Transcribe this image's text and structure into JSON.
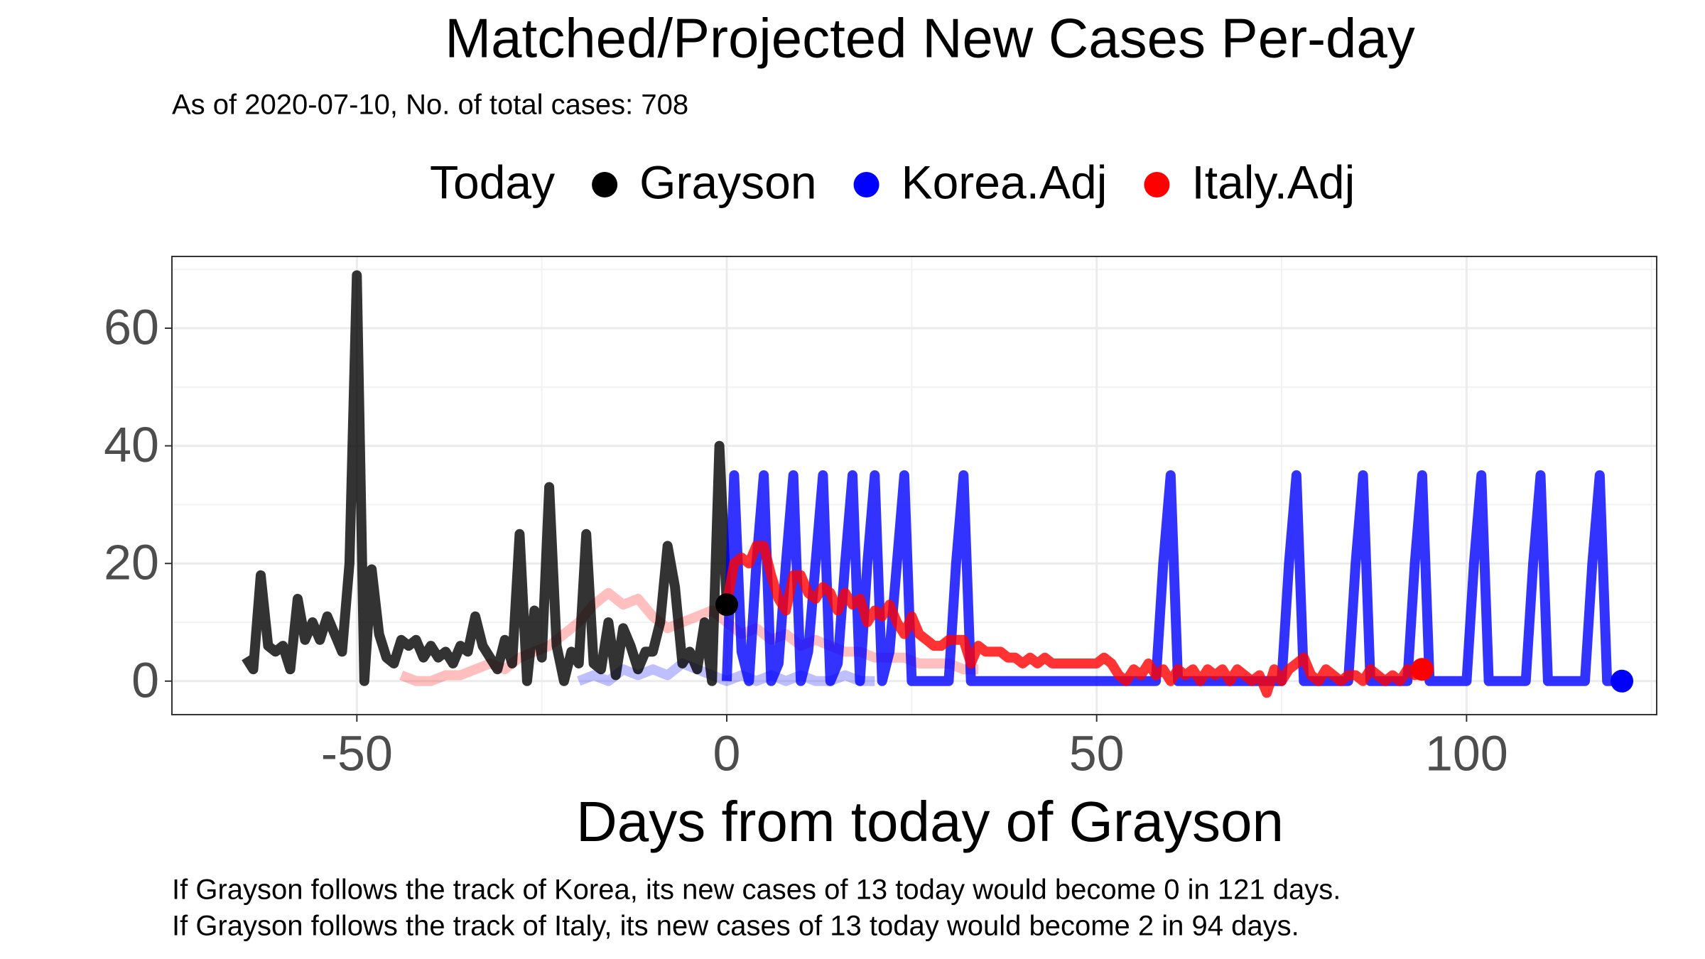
{
  "chart_data": {
    "type": "line",
    "title": "Matched/Projected New Cases Per-day",
    "subtitle": "As of 2020-07-10, No. of total cases: 708",
    "x_label": "Days from today of Grayson",
    "legend_title": "Today",
    "legend_position": "top",
    "caption": [
      "If Grayson follows the track of Korea, its new cases of 13 today would become 0 in 121 days.",
      "If Grayson follows the track of Italy, its new cases of 13 today would become 2 in 94 days."
    ],
    "xlim": [
      -75,
      125.7
    ],
    "ylim": [
      -5.7,
      72.2
    ],
    "xticks": [
      -50,
      0,
      50,
      100
    ],
    "yticks": [
      0,
      20,
      40,
      60
    ],
    "minor_xticks": [
      -75,
      -25,
      25,
      75,
      125
    ],
    "minor_yticks": [
      10,
      30,
      50,
      70
    ],
    "grid": true,
    "line_opacity": 0.8,
    "matched_opacity": 0.25,
    "series": [
      {
        "name": "Grayson",
        "color": "#000000",
        "x": [
          -65,
          -64,
          -63,
          -62,
          -61,
          -60,
          -59,
          -58,
          -57,
          -56,
          -55,
          -54,
          -53,
          -52,
          -51,
          -50,
          -49,
          -48,
          -47,
          -46,
          -45,
          -44,
          -43,
          -42,
          -41,
          -40,
          -39,
          -38,
          -37,
          -36,
          -35,
          -34,
          -33,
          -32,
          -31,
          -30,
          -29,
          -28,
          -27,
          -26,
          -25,
          -24,
          -23,
          -22,
          -21,
          -20,
          -19,
          -18,
          -17,
          -16,
          -15,
          -14,
          -13,
          -12,
          -11,
          -10,
          -9,
          -8,
          -7,
          -6,
          -5,
          -4,
          -3,
          -2,
          -1,
          0
        ],
        "values": [
          4,
          2,
          18,
          6,
          5,
          6,
          2,
          14,
          7,
          10,
          7,
          11,
          8,
          5,
          20,
          69,
          0,
          19,
          8,
          4,
          3,
          7,
          6,
          7,
          4,
          6,
          4,
          5,
          3,
          6,
          5,
          11,
          6,
          4,
          2,
          7,
          3,
          25,
          0,
          12,
          4,
          33,
          6,
          0,
          5,
          3,
          25,
          3,
          2,
          10,
          1,
          9,
          6,
          2,
          5,
          5,
          10,
          23,
          16,
          3,
          5,
          2,
          10,
          0,
          40,
          13
        ]
      },
      {
        "name": "Korea.Adj",
        "color": "#0000ff",
        "x": [
          0,
          1,
          2,
          3,
          4,
          5,
          6,
          7,
          8,
          9,
          10,
          11,
          12,
          13,
          14,
          15,
          16,
          17,
          18,
          19,
          20,
          21,
          22,
          23,
          24,
          25,
          26,
          27,
          28,
          29,
          30,
          31,
          32,
          33,
          34,
          35,
          36,
          37,
          38,
          39,
          40,
          41,
          42,
          43,
          44,
          45,
          46,
          47,
          48,
          49,
          50,
          51,
          52,
          53,
          54,
          55,
          56,
          57,
          58,
          59,
          60,
          61,
          62,
          63,
          64,
          65,
          66,
          67,
          68,
          69,
          70,
          71,
          72,
          73,
          74,
          75,
          76,
          77,
          78,
          79,
          80,
          81,
          82,
          83,
          84,
          85,
          86,
          87,
          88,
          89,
          90,
          91,
          92,
          93,
          94,
          95,
          96,
          97,
          98,
          99,
          100,
          101,
          102,
          103,
          104,
          105,
          106,
          107,
          108,
          109,
          110,
          111,
          112,
          113,
          114,
          115,
          116,
          117,
          118,
          119,
          120,
          121
        ],
        "values": [
          0,
          35,
          5,
          0,
          20,
          35,
          0,
          3,
          20,
          35,
          0,
          5,
          20,
          35,
          0,
          3,
          20,
          35,
          0,
          20,
          35,
          0,
          5,
          20,
          35,
          0,
          0,
          0,
          0,
          0,
          0,
          20,
          35,
          0,
          0,
          0,
          0,
          0,
          0,
          0,
          0,
          0,
          0,
          0,
          0,
          0,
          0,
          0,
          0,
          0,
          0,
          0,
          0,
          0,
          0,
          0,
          0,
          0,
          0,
          20,
          35,
          0,
          0,
          0,
          0,
          0,
          0,
          0,
          0,
          0,
          0,
          0,
          0,
          0,
          0,
          0,
          20,
          35,
          0,
          0,
          0,
          0,
          0,
          0,
          0,
          20,
          35,
          0,
          0,
          0,
          0,
          0,
          0,
          20,
          35,
          0,
          0,
          0,
          0,
          0,
          0,
          20,
          35,
          0,
          0,
          0,
          0,
          0,
          0,
          20,
          35,
          0,
          0,
          0,
          0,
          0,
          0,
          20,
          35,
          0,
          0,
          0
        ],
        "matched_x": [
          -20,
          -18,
          -16,
          -14,
          -12,
          -10,
          -8,
          -6,
          -4,
          -2,
          0,
          2,
          4,
          6,
          8,
          10,
          12,
          14,
          16,
          18,
          20
        ],
        "matched_values": [
          0,
          1,
          0,
          2,
          1,
          2,
          1,
          3,
          2,
          1,
          0,
          1,
          0,
          1,
          0,
          1,
          0,
          0,
          1,
          0,
          0
        ]
      },
      {
        "name": "Italy.Adj",
        "color": "#ff0000",
        "x": [
          0,
          1,
          2,
          3,
          4,
          5,
          6,
          7,
          8,
          9,
          10,
          11,
          12,
          13,
          14,
          15,
          16,
          17,
          18,
          19,
          20,
          21,
          22,
          23,
          24,
          25,
          26,
          27,
          28,
          29,
          30,
          31,
          32,
          33,
          34,
          35,
          36,
          37,
          38,
          39,
          40,
          41,
          42,
          43,
          44,
          45,
          46,
          47,
          48,
          49,
          50,
          51,
          52,
          53,
          54,
          55,
          56,
          57,
          58,
          59,
          60,
          61,
          62,
          63,
          64,
          65,
          66,
          67,
          68,
          69,
          70,
          71,
          72,
          73,
          74,
          75,
          76,
          77,
          78,
          79,
          80,
          81,
          82,
          83,
          84,
          85,
          86,
          87,
          88,
          89,
          90,
          91,
          92,
          93,
          94
        ],
        "values": [
          13,
          20,
          21,
          20,
          23,
          23,
          18,
          14,
          12,
          18,
          18,
          15,
          14,
          16,
          15,
          12,
          15,
          13,
          14,
          10,
          12,
          11,
          13,
          10,
          8,
          11,
          8,
          7,
          6,
          6,
          7,
          7,
          7,
          3,
          6,
          5,
          5,
          5,
          4,
          4,
          3,
          4,
          3,
          4,
          3,
          3,
          3,
          3,
          3,
          3,
          3,
          4,
          3,
          1,
          0,
          2,
          1,
          3,
          1,
          2,
          0,
          2,
          1,
          2,
          0,
          2,
          1,
          2,
          0,
          2,
          1,
          0,
          1,
          -2,
          2,
          0,
          2,
          3,
          4,
          1,
          0,
          2,
          1,
          0,
          1,
          1,
          0,
          2,
          1,
          0,
          1,
          0,
          2,
          1,
          2
        ],
        "matched_x": [
          -44,
          -42,
          -40,
          -38,
          -36,
          -34,
          -32,
          -30,
          -28,
          -26,
          -24,
          -22,
          -20,
          -18,
          -16,
          -14,
          -12,
          -10,
          -8,
          -6,
          -4,
          -2,
          0,
          2,
          4,
          6,
          8,
          10,
          12,
          14,
          16,
          18,
          20,
          22,
          24,
          26,
          28,
          30,
          32,
          34
        ],
        "matched_values": [
          1,
          0,
          0,
          1,
          1,
          2,
          3,
          2,
          4,
          5,
          6,
          8,
          10,
          13,
          15,
          13,
          14,
          11,
          9,
          10,
          11,
          12,
          10,
          8,
          9,
          7,
          8,
          6,
          7,
          6,
          5,
          5,
          4,
          4,
          4,
          3,
          3,
          3,
          2,
          2
        ]
      }
    ]
  }
}
